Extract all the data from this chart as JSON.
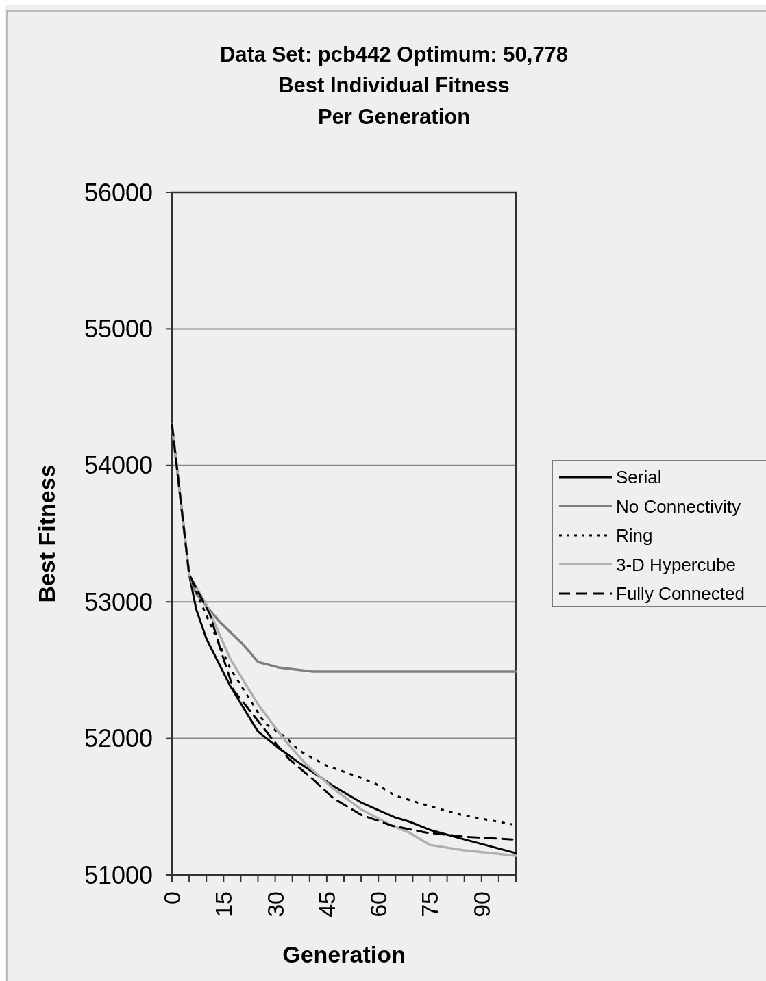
{
  "chart_data": {
    "type": "line",
    "title": "Data Set:  pcb442  Optimum:  50,778",
    "subtitle": "Best Individual Fitness\nPer Generation",
    "xlabel": "Generation",
    "ylabel": "Best Fitness",
    "xlim": [
      0,
      100
    ],
    "ylim": [
      51000,
      56000
    ],
    "yticks": [
      51000,
      52000,
      53000,
      54000,
      55000,
      56000
    ],
    "xticks": [
      0,
      {
        "value": 5,
        "label": null
      },
      {
        "value": 10,
        "label": null
      },
      15,
      {
        "value": 20,
        "label": null
      },
      {
        "value": 25,
        "label": null
      },
      30,
      {
        "value": 35,
        "label": null
      },
      {
        "value": 40,
        "label": null
      },
      45,
      {
        "value": 50,
        "label": null
      },
      {
        "value": 55,
        "label": null
      },
      60,
      {
        "value": 65,
        "label": null
      },
      {
        "value": 70,
        "label": null
      },
      75,
      {
        "value": 80,
        "label": null
      },
      {
        "value": 85,
        "label": null
      },
      90,
      {
        "value": 95,
        "label": null
      },
      {
        "value": 100,
        "label": null
      }
    ],
    "grid": "y",
    "legend": "right",
    "marker": "none",
    "series": [
      {
        "name": "Serial",
        "color": "#000000",
        "line_style": "solid",
        "x": [
          0,
          5,
          7,
          10,
          17,
          25,
          31,
          37,
          47,
          55,
          65,
          69,
          75,
          85,
          100
        ],
        "values": [
          54300,
          53200,
          52950,
          52730,
          52380,
          52050,
          51930,
          51820,
          51650,
          51530,
          51420,
          51390,
          51330,
          51260,
          51160
        ]
      },
      {
        "name": "No Connectivity",
        "color": "#808080",
        "line_style": "solid",
        "x": [
          0,
          5,
          7,
          14,
          21,
          25,
          31,
          41,
          60,
          80,
          100
        ],
        "values": [
          54300,
          53200,
          53060,
          52850,
          52680,
          52560,
          52520,
          52490,
          52490,
          52490,
          52490
        ]
      },
      {
        "name": "Ring",
        "color": "#000000",
        "line_style": "dotted",
        "x": [
          0,
          5,
          10,
          17,
          21,
          27,
          33,
          37,
          45,
          54,
          59,
          65,
          74,
          84,
          99
        ],
        "values": [
          54300,
          53200,
          52900,
          52510,
          52350,
          52110,
          52010,
          51910,
          51800,
          51720,
          51670,
          51580,
          51510,
          51440,
          51370
        ]
      },
      {
        "name": "3-D Hypercube",
        "color": "#b0b0b0",
        "line_style": "solid",
        "x": [
          0,
          5,
          10,
          17,
          25,
          33,
          39,
          47,
          55,
          64,
          69,
          75,
          85,
          100
        ],
        "values": [
          54300,
          53200,
          52980,
          52580,
          52250,
          51980,
          51810,
          51630,
          51480,
          51360,
          51310,
          51220,
          51180,
          51140
        ]
      },
      {
        "name": "Fully Connected",
        "color": "#000000",
        "line_style": "dashed",
        "x": [
          0,
          5,
          11,
          14,
          18,
          24,
          29,
          34,
          41,
          47,
          55,
          64,
          74,
          85,
          99
        ],
        "values": [
          54300,
          53200,
          52910,
          52660,
          52350,
          52160,
          52000,
          51850,
          51700,
          51560,
          51440,
          51360,
          51310,
          51280,
          51260
        ]
      }
    ]
  }
}
